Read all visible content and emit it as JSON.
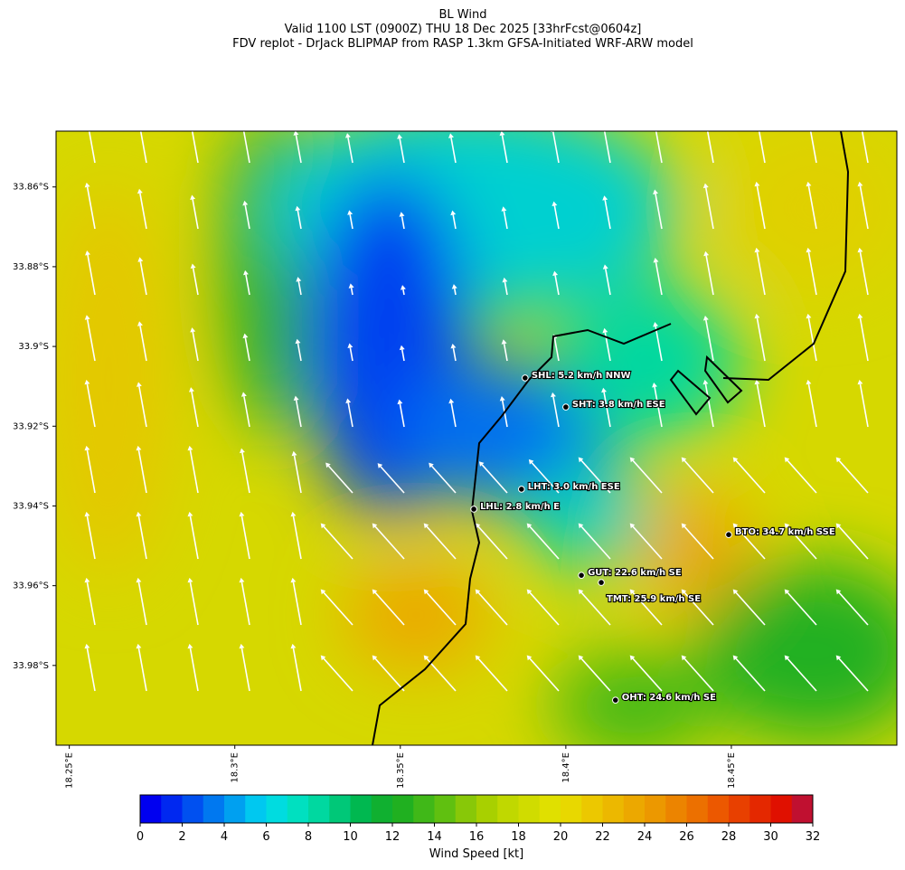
{
  "title": [
    "BL Wind",
    "Valid 1100 LST (0900Z) THU 18 Dec 2025 [33hrFcst@0604z]",
    "FDV replot - DrJack BLIPMAP from RASP 1.3km GFSA-Initiated WRF-ARW model"
  ],
  "map": {
    "xlim": [
      18.246,
      18.5
    ],
    "ylim": [
      -34.0,
      -33.846
    ],
    "xticks": [
      {
        "value": 18.25,
        "label": "18.25°E"
      },
      {
        "value": 18.3,
        "label": "18.3°E"
      },
      {
        "value": 18.35,
        "label": "18.35°E"
      },
      {
        "value": 18.4,
        "label": "18.4°E"
      },
      {
        "value": 18.45,
        "label": "18.45°E"
      }
    ],
    "yticks": [
      {
        "value": -33.86,
        "label": "33.86°S"
      },
      {
        "value": -33.88,
        "label": "33.88°S"
      },
      {
        "value": -33.9,
        "label": "33.9°S"
      },
      {
        "value": -33.92,
        "label": "33.92°S"
      },
      {
        "value": -33.94,
        "label": "33.94°S"
      },
      {
        "value": -33.96,
        "label": "33.96°S"
      },
      {
        "value": -33.98,
        "label": "33.98°S"
      }
    ],
    "stations": [
      {
        "label": "SHL: 5.2 km/h NNW",
        "lon": 18.3877,
        "lat": -33.9079
      },
      {
        "label": "SHT: 3.8 km/h ESE",
        "lon": 18.4,
        "lat": -33.9152
      },
      {
        "label": "LHT: 3.0 km/h ESE",
        "lon": 18.3866,
        "lat": -33.9358
      },
      {
        "label": "LHL: 2.8 km/h E",
        "lon": 18.3722,
        "lat": -33.9408
      },
      {
        "label": "BTO: 34.7 km/h SSE",
        "lon": 18.4492,
        "lat": -33.9472
      },
      {
        "label": "GUT: 22.6 km/h SE",
        "lon": 18.4047,
        "lat": -33.9574
      },
      {
        "label": "TMT: 25.9 km/h SE",
        "lon": 18.4107,
        "lat": -33.9592
      },
      {
        "label": "OHT: 24.6 km/h SE",
        "lon": 18.415,
        "lat": -33.9887
      }
    ]
  },
  "colorbar": {
    "label": "Wind Speed [kt]",
    "lim": [
      0,
      32
    ],
    "ticks": [
      0,
      2,
      4,
      6,
      8,
      10,
      12,
      14,
      16,
      18,
      20,
      22,
      24,
      26,
      28,
      30,
      32
    ],
    "colors": [
      "#0000f0",
      "#0028f0",
      "#0050f0",
      "#0078f0",
      "#00a0f0",
      "#00c8f0",
      "#00dce0",
      "#00e0c0",
      "#00d8a0",
      "#00c878",
      "#00b850",
      "#10b030",
      "#20b020",
      "#40b818",
      "#60c010",
      "#88c808",
      "#a8d000",
      "#c0d800",
      "#d0dc00",
      "#e0e000",
      "#e8d800",
      "#ecc800",
      "#ecb800",
      "#eca800",
      "#ec9800",
      "#ec8400",
      "#ec7000",
      "#ec5800",
      "#e84000",
      "#e42800",
      "#e01000",
      "#c01030"
    ]
  }
}
